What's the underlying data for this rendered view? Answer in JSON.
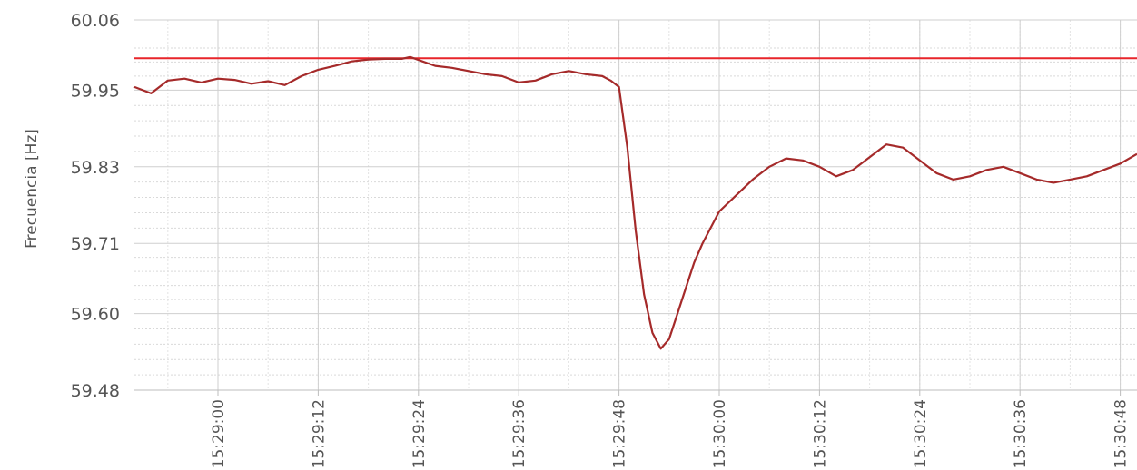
{
  "chart_data": {
    "type": "line",
    "title": "",
    "ylabel": "Frecuencia [Hz]",
    "xlabel": "",
    "ylim": [
      59.48,
      60.06
    ],
    "yticks": [
      "60.06",
      "59.95",
      "59.83",
      "59.71",
      "59.60",
      "59.48"
    ],
    "xlim": [
      "15:28:50",
      "15:30:50"
    ],
    "xticks": [
      "15:29:00",
      "15:29:12",
      "15:29:24",
      "15:29:36",
      "15:29:48",
      "15:30:00",
      "15:30:12",
      "15:30:24",
      "15:30:36",
      "15:30:48"
    ],
    "grid": true,
    "reference_line": {
      "value": 60.0,
      "color": "#e8252a"
    },
    "series": [
      {
        "color": "#a52a2a",
        "x": [
          "15:28:50",
          "15:28:52",
          "15:28:54",
          "15:28:56",
          "15:28:58",
          "15:29:00",
          "15:29:02",
          "15:29:04",
          "15:29:06",
          "15:29:08",
          "15:29:10",
          "15:29:12",
          "15:29:14",
          "15:29:16",
          "15:29:18",
          "15:29:20",
          "15:29:22",
          "15:29:23",
          "15:29:26",
          "15:29:28",
          "15:29:30",
          "15:29:32",
          "15:29:34",
          "15:29:36",
          "15:29:38",
          "15:29:40",
          "15:29:42",
          "15:29:44",
          "15:29:46",
          "15:29:47",
          "15:29:48",
          "15:29:49",
          "15:29:50",
          "15:29:51",
          "15:29:52",
          "15:29:53",
          "15:29:54",
          "15:29:55",
          "15:29:56",
          "15:29:57",
          "15:29:58",
          "15:29:59",
          "15:30:00",
          "15:30:02",
          "15:30:04",
          "15:30:06",
          "15:30:08",
          "15:30:10",
          "15:30:12",
          "15:30:14",
          "15:30:16",
          "15:30:18",
          "15:30:20",
          "15:30:22",
          "15:30:24",
          "15:30:26",
          "15:30:28",
          "15:30:30",
          "15:30:32",
          "15:30:34",
          "15:30:36",
          "15:30:38",
          "15:30:40",
          "15:30:42",
          "15:30:44",
          "15:30:46",
          "15:30:48",
          "15:30:50"
        ],
        "y": [
          59.955,
          59.945,
          59.965,
          59.968,
          59.962,
          59.968,
          59.966,
          59.96,
          59.964,
          59.958,
          59.972,
          59.982,
          59.988,
          59.995,
          59.998,
          59.999,
          59.999,
          60.002,
          59.988,
          59.985,
          59.98,
          59.975,
          59.972,
          59.962,
          59.965,
          59.975,
          59.98,
          59.975,
          59.972,
          59.965,
          59.955,
          59.86,
          59.73,
          59.63,
          59.57,
          59.545,
          59.56,
          59.6,
          59.64,
          59.68,
          59.71,
          59.735,
          59.76,
          59.785,
          59.81,
          59.83,
          59.843,
          59.84,
          59.83,
          59.815,
          59.825,
          59.845,
          59.865,
          59.86,
          59.84,
          59.82,
          59.81,
          59.815,
          59.825,
          59.83,
          59.82,
          59.81,
          59.805,
          59.81,
          59.815,
          59.825,
          59.835,
          59.85
        ]
      }
    ]
  }
}
